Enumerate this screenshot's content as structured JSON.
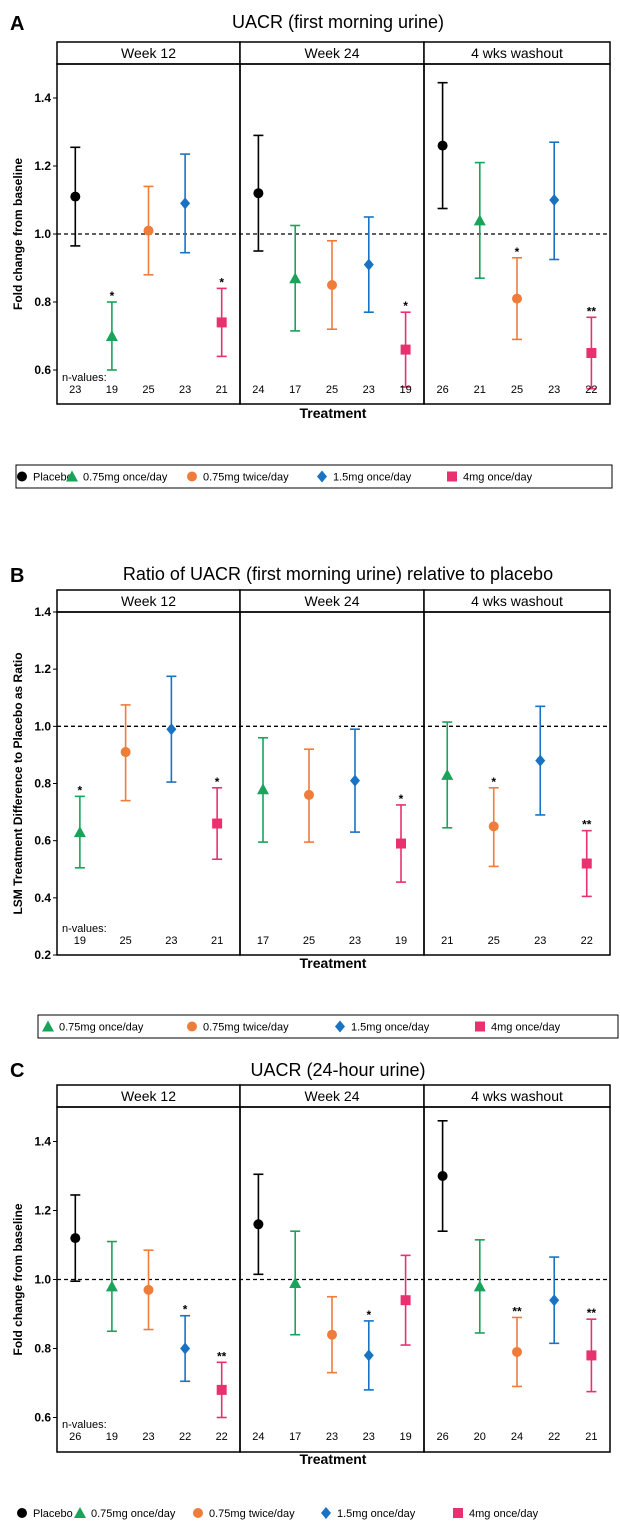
{
  "colors": {
    "Placebo": "#000000",
    "0.75mg once/day": "#1aa35a",
    "0.75mg twice/day": "#f07c3c",
    "1.5mg once/day": "#1a73c2",
    "4mg once/day": "#e8316e"
  },
  "markers": {
    "Placebo": "circle",
    "0.75mg once/day": "triangle",
    "0.75mg twice/day": "circle",
    "1.5mg once/day": "diamond",
    "4mg once/day": "square"
  },
  "chart_data": [
    {
      "type": "scatter",
      "panel_label": "A",
      "title": "UACR (first morning urine)",
      "xlabel": "Treatment",
      "ylabel": "Fold change from baseline",
      "ylim": [
        0.5,
        1.5
      ],
      "yticks": [
        0.6,
        0.8,
        1.0,
        1.2,
        1.4
      ],
      "ytick_labels": [
        "0.6",
        "0.8",
        "1.0",
        "1.2",
        "1.4"
      ],
      "reference_line": 1.0,
      "n_label": "n-values:",
      "legend": [
        "Placebo",
        "0.75mg once/day",
        "0.75mg twice/day",
        "1.5mg once/day",
        "4mg once/day"
      ],
      "facets": [
        {
          "label": "Week 12",
          "points": [
            {
              "series": "Placebo",
              "y": 1.11,
              "lo": 0.965,
              "hi": 1.255,
              "n": "23",
              "star": ""
            },
            {
              "series": "0.75mg once/day",
              "y": 0.7,
              "lo": 0.6,
              "hi": 0.8,
              "n": "19",
              "star": "*"
            },
            {
              "series": "0.75mg twice/day",
              "y": 1.01,
              "lo": 0.88,
              "hi": 1.14,
              "n": "25",
              "star": ""
            },
            {
              "series": "1.5mg once/day",
              "y": 1.09,
              "lo": 0.945,
              "hi": 1.235,
              "n": "23",
              "star": ""
            },
            {
              "series": "4mg once/day",
              "y": 0.74,
              "lo": 0.64,
              "hi": 0.84,
              "n": "21",
              "star": "*"
            }
          ]
        },
        {
          "label": "Week 24",
          "points": [
            {
              "series": "Placebo",
              "y": 1.12,
              "lo": 0.95,
              "hi": 1.29,
              "n": "24",
              "star": ""
            },
            {
              "series": "0.75mg once/day",
              "y": 0.87,
              "lo": 0.715,
              "hi": 1.025,
              "n": "17",
              "star": ""
            },
            {
              "series": "0.75mg twice/day",
              "y": 0.85,
              "lo": 0.72,
              "hi": 0.98,
              "n": "25",
              "star": ""
            },
            {
              "series": "1.5mg once/day",
              "y": 0.91,
              "lo": 0.77,
              "hi": 1.05,
              "n": "23",
              "star": ""
            },
            {
              "series": "4mg once/day",
              "y": 0.66,
              "lo": 0.55,
              "hi": 0.77,
              "n": "19",
              "star": "*"
            }
          ]
        },
        {
          "label": "4 wks washout",
          "points": [
            {
              "series": "Placebo",
              "y": 1.26,
              "lo": 1.075,
              "hi": 1.445,
              "n": "26",
              "star": ""
            },
            {
              "series": "0.75mg once/day",
              "y": 1.04,
              "lo": 0.87,
              "hi": 1.21,
              "n": "21",
              "star": ""
            },
            {
              "series": "0.75mg twice/day",
              "y": 0.81,
              "lo": 0.69,
              "hi": 0.93,
              "n": "25",
              "star": "*"
            },
            {
              "series": "1.5mg once/day",
              "y": 1.1,
              "lo": 0.925,
              "hi": 1.27,
              "n": "23",
              "star": ""
            },
            {
              "series": "4mg once/day",
              "y": 0.65,
              "lo": 0.545,
              "hi": 0.755,
              "n": "22",
              "star": "**"
            }
          ]
        }
      ]
    },
    {
      "type": "scatter",
      "panel_label": "B",
      "title": "Ratio of UACR (first morning urine) relative to placebo",
      "xlabel": "Treatment",
      "ylabel": "LSM Treatment Difference to Placebo as  Ratio",
      "ylim": [
        0.2,
        1.4
      ],
      "yticks": [
        0.2,
        0.4,
        0.6,
        0.8,
        1.0,
        1.2,
        1.4
      ],
      "ytick_labels": [
        "0.2",
        "0.4",
        "0.6",
        "0.8",
        "1.0",
        "1.2",
        "1.4"
      ],
      "reference_line": 1.0,
      "n_label": "n-values:",
      "legend": [
        "0.75mg once/day",
        "0.75mg twice/day",
        "1.5mg once/day",
        "4mg once/day"
      ],
      "facets": [
        {
          "label": "Week 12",
          "points": [
            {
              "series": "0.75mg once/day",
              "y": 0.63,
              "lo": 0.505,
              "hi": 0.755,
              "n": "19",
              "star": "*"
            },
            {
              "series": "0.75mg twice/day",
              "y": 0.91,
              "lo": 0.74,
              "hi": 1.075,
              "n": "25",
              "star": ""
            },
            {
              "series": "1.5mg once/day",
              "y": 0.99,
              "lo": 0.805,
              "hi": 1.175,
              "n": "23",
              "star": ""
            },
            {
              "series": "4mg once/day",
              "y": 0.66,
              "lo": 0.535,
              "hi": 0.785,
              "n": "21",
              "star": "*"
            }
          ]
        },
        {
          "label": "Week 24",
          "points": [
            {
              "series": "0.75mg once/day",
              "y": 0.78,
              "lo": 0.595,
              "hi": 0.96,
              "n": "17",
              "star": ""
            },
            {
              "series": "0.75mg twice/day",
              "y": 0.76,
              "lo": 0.595,
              "hi": 0.92,
              "n": "25",
              "star": ""
            },
            {
              "series": "1.5mg once/day",
              "y": 0.81,
              "lo": 0.63,
              "hi": 0.99,
              "n": "23",
              "star": ""
            },
            {
              "series": "4mg once/day",
              "y": 0.59,
              "lo": 0.455,
              "hi": 0.725,
              "n": "19",
              "star": "*"
            }
          ]
        },
        {
          "label": "4 wks washout",
          "points": [
            {
              "series": "0.75mg once/day",
              "y": 0.83,
              "lo": 0.645,
              "hi": 1.015,
              "n": "21",
              "star": ""
            },
            {
              "series": "0.75mg twice/day",
              "y": 0.65,
              "lo": 0.51,
              "hi": 0.785,
              "n": "25",
              "star": "*"
            },
            {
              "series": "1.5mg once/day",
              "y": 0.88,
              "lo": 0.69,
              "hi": 1.07,
              "n": "23",
              "star": ""
            },
            {
              "series": "4mg once/day",
              "y": 0.52,
              "lo": 0.405,
              "hi": 0.635,
              "n": "22",
              "star": "**"
            }
          ]
        }
      ]
    },
    {
      "type": "scatter",
      "panel_label": "C",
      "title": "UACR (24-hour urine)",
      "xlabel": "Treatment",
      "ylabel": "Fold change from baseline",
      "ylim": [
        0.5,
        1.5
      ],
      "yticks": [
        0.6,
        0.8,
        1.0,
        1.2,
        1.4
      ],
      "ytick_labels": [
        "0.6",
        "0.8",
        "1.0",
        "1.2",
        "1.4"
      ],
      "reference_line": 1.0,
      "n_label": "n-values:",
      "legend": [
        "Placebo",
        "0.75mg once/day",
        "0.75mg twice/day",
        "1.5mg once/day",
        "4mg once/day"
      ],
      "facets": [
        {
          "label": "Week 12",
          "points": [
            {
              "series": "Placebo",
              "y": 1.12,
              "lo": 0.995,
              "hi": 1.245,
              "n": "26",
              "star": ""
            },
            {
              "series": "0.75mg once/day",
              "y": 0.98,
              "lo": 0.85,
              "hi": 1.11,
              "n": "19",
              "star": ""
            },
            {
              "series": "0.75mg twice/day",
              "y": 0.97,
              "lo": 0.855,
              "hi": 1.085,
              "n": "23",
              "star": ""
            },
            {
              "series": "1.5mg once/day",
              "y": 0.8,
              "lo": 0.705,
              "hi": 0.895,
              "n": "22",
              "star": "*"
            },
            {
              "series": "4mg once/day",
              "y": 0.68,
              "lo": 0.6,
              "hi": 0.76,
              "n": "22",
              "star": "**"
            }
          ]
        },
        {
          "label": "Week 24",
          "points": [
            {
              "series": "Placebo",
              "y": 1.16,
              "lo": 1.015,
              "hi": 1.305,
              "n": "24",
              "star": ""
            },
            {
              "series": "0.75mg once/day",
              "y": 0.99,
              "lo": 0.84,
              "hi": 1.14,
              "n": "17",
              "star": ""
            },
            {
              "series": "0.75mg twice/day",
              "y": 0.84,
              "lo": 0.73,
              "hi": 0.95,
              "n": "23",
              "star": ""
            },
            {
              "series": "1.5mg once/day",
              "y": 0.78,
              "lo": 0.68,
              "hi": 0.88,
              "n": "23",
              "star": "*"
            },
            {
              "series": "4mg once/day",
              "y": 0.94,
              "lo": 0.81,
              "hi": 1.07,
              "n": "19",
              "star": ""
            }
          ]
        },
        {
          "label": "4 wks washout",
          "points": [
            {
              "series": "Placebo",
              "y": 1.3,
              "lo": 1.14,
              "hi": 1.46,
              "n": "26",
              "star": ""
            },
            {
              "series": "0.75mg once/day",
              "y": 0.98,
              "lo": 0.845,
              "hi": 1.115,
              "n": "20",
              "star": ""
            },
            {
              "series": "0.75mg twice/day",
              "y": 0.79,
              "lo": 0.69,
              "hi": 0.89,
              "n": "24",
              "star": "**"
            },
            {
              "series": "1.5mg once/day",
              "y": 0.94,
              "lo": 0.815,
              "hi": 1.065,
              "n": "22",
              "star": ""
            },
            {
              "series": "4mg once/day",
              "y": 0.78,
              "lo": 0.675,
              "hi": 0.885,
              "n": "21",
              "star": "**"
            }
          ]
        }
      ]
    }
  ]
}
